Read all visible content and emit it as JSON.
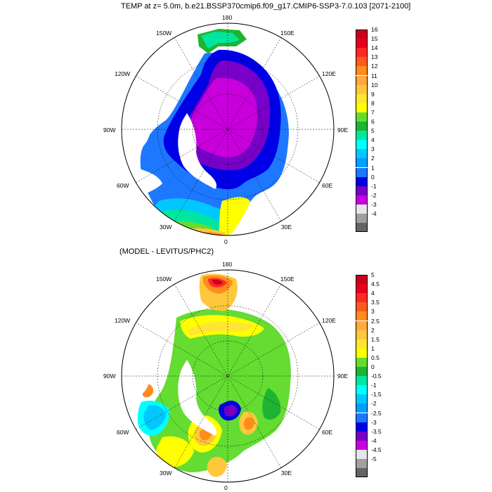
{
  "top_title": "TEMP at z=   5.0m, b.e21.BSSP370cmip6.f09_g17.CMIP6-SSP3-7.0.103 [2071-2100]",
  "bottom_title": "(MODEL - LEVITUS/PHC2)",
  "map_labels": {
    "lon_180": "180",
    "lon_150w": "150W",
    "lon_150e": "150E",
    "lon_120w": "120W",
    "lon_120e": "120E",
    "lon_90w": "90W",
    "lon_90e": "90E",
    "lon_60w": "60W",
    "lon_60e": "60E",
    "lon_30w": "30W",
    "lon_30e": "30E",
    "lon_0": "0"
  },
  "colorbar_top": {
    "labels": [
      "16",
      "15",
      "14",
      "13",
      "12",
      "11",
      "10",
      "9",
      "8",
      "7",
      "6",
      "5",
      "4",
      "3",
      "2",
      "1",
      "0",
      "-1",
      "-2",
      "-3",
      "-4"
    ],
    "colors": [
      "#c8001e",
      "#e6001e",
      "#ff2828",
      "#ff5a1e",
      "#ff8c1e",
      "#ffaa3c",
      "#ffc83c",
      "#ffe632",
      "#ffff00",
      "#64dc32",
      "#1eb432",
      "#00e6a0",
      "#00ffff",
      "#00c8ff",
      "#00a0ff",
      "#1e78ff",
      "#0000e6",
      "#7800c8",
      "#c800dc",
      "#e6e6e6",
      "#a0a0a0",
      "#646464"
    ]
  },
  "colorbar_bottom": {
    "labels": [
      "5",
      "4.5",
      "4",
      "3.5",
      "3",
      "2.5",
      "2",
      "1.5",
      "1",
      "0.5",
      "0",
      "-0.5",
      "-1",
      "-1.5",
      "-2",
      "-2.5",
      "-3",
      "-3.5",
      "-4",
      "-4.5",
      "-5"
    ],
    "colors": [
      "#c8001e",
      "#e6001e",
      "#ff2828",
      "#ff5a1e",
      "#ff8c1e",
      "#ffaa3c",
      "#ffc83c",
      "#ffe632",
      "#ffff00",
      "#64dc32",
      "#1eb432",
      "#00e6a0",
      "#00ffff",
      "#00c8ff",
      "#00a0ff",
      "#1e78ff",
      "#0000e6",
      "#7800c8",
      "#c800dc",
      "#e6e6e6",
      "#a0a0a0",
      "#646464"
    ]
  }
}
